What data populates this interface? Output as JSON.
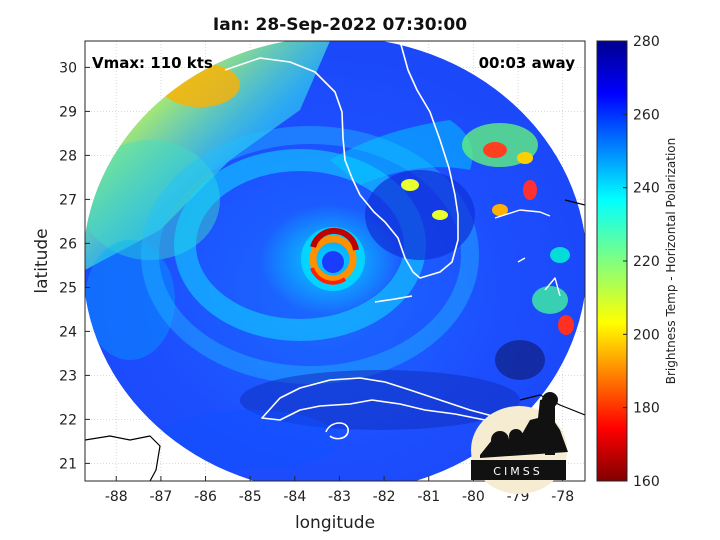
{
  "chart_data": {
    "type": "heatmap",
    "title": "Ian: 28-Sep-2022 07:30:00",
    "xlabel": "longitude",
    "ylabel": "latitude",
    "xlim": [
      -88.7,
      -77.5
    ],
    "ylim": [
      20.6,
      30.6
    ],
    "x_ticks": [
      -88,
      -87,
      -86,
      -85,
      -84,
      -83,
      -82,
      -81,
      -80,
      -79,
      -78
    ],
    "y_ticks": [
      21,
      22,
      23,
      24,
      25,
      26,
      27,
      28,
      29,
      30
    ],
    "grid": true,
    "colorbar": {
      "label": "Brightness Temp - Horizontal Polarization",
      "range": [
        160,
        280
      ],
      "ticks": [
        160,
        180,
        200,
        220,
        240,
        260,
        280
      ],
      "colormap": "jet"
    },
    "storm_center": {
      "lon": -83.0,
      "lat": 25.45
    },
    "annotations": {
      "vmax": "Vmax: 110 kts",
      "time_offset": "00:03 away"
    },
    "logo": "CIMSS"
  }
}
